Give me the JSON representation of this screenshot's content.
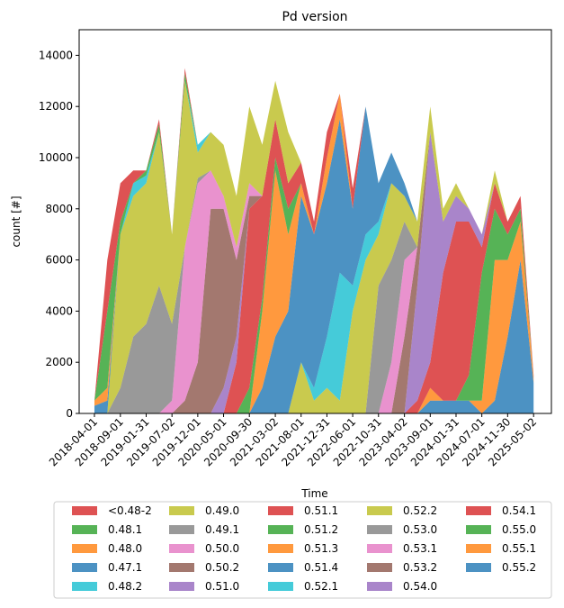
{
  "chart_data": {
    "type": "stacked_area",
    "title": "Pd version",
    "x_label": "Time",
    "y_label": "count [#]",
    "x": [
      "2018-04-01",
      "2018-06-16",
      "2018-09-01",
      "2018-11-16",
      "2019-01-31",
      "2019-04-17",
      "2019-07-02",
      "2019-09-16",
      "2019-12-01",
      "2020-02-15",
      "2020-05-01",
      "2020-07-16",
      "2020-09-30",
      "2020-12-15",
      "2021-03-02",
      "2021-05-17",
      "2021-08-01",
      "2021-10-16",
      "2021-12-31",
      "2022-03-17",
      "2022-06-01",
      "2022-08-16",
      "2022-10-31",
      "2023-01-15",
      "2023-04-02",
      "2023-06-17",
      "2023-09-01",
      "2023-11-16",
      "2024-01-31",
      "2024-04-16",
      "2024-07-01",
      "2024-09-15",
      "2024-11-30",
      "2025-02-14",
      "2025-05-02"
    ],
    "xlim": [
      "2018-01-01",
      "2025-08-15"
    ],
    "xticks": [
      "2018-04-01",
      "2018-09-01",
      "2019-01-31",
      "2019-07-02",
      "2019-12-01",
      "2020-05-01",
      "2020-09-30",
      "2021-03-02",
      "2021-08-01",
      "2021-12-31",
      "2022-06-01",
      "2022-10-31",
      "2023-04-02",
      "2023-09-01",
      "2024-01-31",
      "2024-07-01",
      "2024-11-30",
      "2025-05-02"
    ],
    "ylim": [
      0,
      15000
    ],
    "yticks": [
      0,
      2000,
      4000,
      6000,
      8000,
      10000,
      12000,
      14000
    ],
    "legend": "below",
    "series": [
      {
        "name": "<0.48-2",
        "color": "#d62728",
        "values": [
          0,
          2000,
          1500,
          500,
          0,
          200,
          0,
          200,
          0,
          0,
          0,
          0,
          0,
          0,
          0,
          0,
          0,
          0,
          0,
          0,
          0,
          0,
          0,
          0,
          0,
          0,
          0,
          0,
          0,
          0,
          0,
          0,
          0,
          0,
          0
        ]
      },
      {
        "name": "0.48.1",
        "color": "#2ca02c",
        "values": [
          0,
          3000,
          500,
          0,
          200,
          300,
          0,
          300,
          0,
          0,
          0,
          0,
          0,
          0,
          0,
          0,
          0,
          0,
          0,
          0,
          0,
          0,
          0,
          0,
          0,
          0,
          0,
          0,
          0,
          0,
          0,
          0,
          0,
          0,
          0
        ]
      },
      {
        "name": "0.48.0",
        "color": "#ff7f0e",
        "values": [
          200,
          500,
          0,
          0,
          0,
          0,
          0,
          0,
          0,
          0,
          0,
          0,
          0,
          0,
          0,
          0,
          0,
          0,
          0,
          0,
          0,
          0,
          0,
          0,
          0,
          0,
          0,
          0,
          0,
          0,
          0,
          0,
          0,
          0,
          0
        ]
      },
      {
        "name": "0.47.1",
        "color": "#1f77b4",
        "values": [
          300,
          500,
          0,
          0,
          0,
          0,
          0,
          0,
          0,
          0,
          0,
          0,
          0,
          0,
          0,
          0,
          0,
          0,
          0,
          0,
          0,
          0,
          0,
          0,
          0,
          0,
          0,
          0,
          0,
          0,
          0,
          0,
          0,
          0,
          0
        ]
      },
      {
        "name": "0.48.2",
        "color": "#17becf",
        "values": [
          0,
          0,
          0,
          500,
          300,
          0,
          0,
          0,
          300,
          0,
          0,
          0,
          0,
          0,
          0,
          0,
          0,
          0,
          0,
          0,
          0,
          0,
          0,
          0,
          0,
          0,
          0,
          0,
          0,
          0,
          0,
          0,
          0,
          0,
          0
        ]
      },
      {
        "name": "0.49.0",
        "color": "#bcbd22",
        "values": [
          0,
          0,
          6000,
          5500,
          5500,
          6000,
          3500,
          6500,
          1000,
          1500,
          2000,
          2000,
          3000,
          2000,
          1500,
          2000,
          0,
          0,
          0,
          0,
          0,
          0,
          0,
          0,
          0,
          0,
          0,
          0,
          0,
          0,
          0,
          0,
          0,
          0,
          0
        ]
      },
      {
        "name": "0.49.1",
        "color": "#7f7f7f",
        "values": [
          0,
          0,
          1000,
          3000,
          3500,
          5000,
          3000,
          0,
          200,
          0,
          0,
          0,
          0,
          0,
          0,
          0,
          0,
          0,
          0,
          0,
          0,
          0,
          0,
          0,
          0,
          0,
          0,
          0,
          0,
          0,
          0,
          0,
          0,
          0,
          0
        ]
      },
      {
        "name": "0.50.0",
        "color": "#e377c2",
        "values": [
          0,
          0,
          0,
          0,
          0,
          0,
          500,
          6000,
          7000,
          1500,
          500,
          500,
          500,
          0,
          0,
          0,
          0,
          0,
          0,
          0,
          0,
          0,
          0,
          0,
          0,
          0,
          0,
          0,
          0,
          0,
          0,
          0,
          0,
          0,
          0
        ]
      },
      {
        "name": "0.50.2",
        "color": "#8c564b",
        "values": [
          0,
          0,
          0,
          0,
          0,
          0,
          0,
          500,
          2000,
          8000,
          7000,
          3000,
          500,
          0,
          0,
          0,
          0,
          0,
          0,
          0,
          0,
          0,
          0,
          0,
          0,
          0,
          0,
          0,
          0,
          0,
          0,
          0,
          0,
          0,
          0
        ]
      },
      {
        "name": "0.51.0",
        "color": "#9467bd",
        "values": [
          0,
          0,
          0,
          0,
          0,
          0,
          0,
          0,
          0,
          0,
          1000,
          1000,
          0,
          0,
          0,
          0,
          0,
          0,
          0,
          0,
          0,
          0,
          0,
          0,
          0,
          0,
          0,
          0,
          0,
          0,
          0,
          0,
          0,
          0,
          0
        ]
      },
      {
        "name": "0.51.1",
        "color": "#d62728",
        "values": [
          0,
          0,
          0,
          0,
          0,
          0,
          0,
          0,
          0,
          0,
          0,
          2000,
          7000,
          4000,
          1500,
          1000,
          800,
          500,
          1000,
          0,
          800,
          0,
          0,
          0,
          0,
          0,
          0,
          0,
          0,
          0,
          0,
          0,
          0,
          0,
          0
        ]
      },
      {
        "name": "0.51.2",
        "color": "#2ca02c",
        "values": [
          0,
          0,
          0,
          0,
          0,
          0,
          0,
          0,
          0,
          0,
          0,
          0,
          1000,
          500,
          500,
          1000,
          0,
          0,
          0,
          0,
          0,
          0,
          0,
          0,
          0,
          0,
          0,
          0,
          0,
          0,
          0,
          0,
          0,
          0,
          0
        ]
      },
      {
        "name": "0.51.3",
        "color": "#ff7f0e",
        "values": [
          0,
          0,
          0,
          0,
          0,
          0,
          0,
          0,
          0,
          0,
          0,
          0,
          0,
          3000,
          6500,
          3000,
          500,
          0,
          1000,
          1000,
          0,
          0,
          0,
          0,
          0,
          0,
          0,
          0,
          0,
          0,
          0,
          0,
          0,
          0,
          0
        ]
      },
      {
        "name": "0.51.4",
        "color": "#1f77b4",
        "values": [
          0,
          0,
          0,
          0,
          0,
          0,
          0,
          0,
          0,
          0,
          0,
          0,
          0,
          1000,
          3000,
          4000,
          6500,
          6000,
          6000,
          6000,
          3000,
          5000,
          1500,
          1200,
          500,
          0,
          0,
          0,
          0,
          0,
          0,
          0,
          0,
          0,
          0
        ]
      },
      {
        "name": "0.52.1",
        "color": "#17becf",
        "values": [
          0,
          0,
          0,
          0,
          0,
          0,
          0,
          0,
          0,
          0,
          0,
          0,
          0,
          0,
          0,
          0,
          0,
          500,
          2000,
          5000,
          1000,
          1000,
          500,
          0,
          0,
          0,
          0,
          0,
          0,
          0,
          0,
          0,
          0,
          0,
          0
        ]
      },
      {
        "name": "0.52.2",
        "color": "#bcbd22",
        "values": [
          0,
          0,
          0,
          0,
          0,
          0,
          0,
          0,
          0,
          0,
          0,
          0,
          0,
          0,
          0,
          0,
          2000,
          500,
          1000,
          500,
          4000,
          6000,
          2000,
          3000,
          1000,
          1000,
          1000,
          500,
          500,
          0,
          0,
          500,
          0,
          0,
          0
        ]
      },
      {
        "name": "0.53.0",
        "color": "#7f7f7f",
        "values": [
          0,
          0,
          0,
          0,
          0,
          0,
          0,
          0,
          0,
          0,
          0,
          0,
          0,
          0,
          0,
          0,
          0,
          0,
          0,
          0,
          0,
          0,
          5000,
          4000,
          1500,
          0,
          0,
          0,
          0,
          0,
          0,
          0,
          0,
          0,
          0
        ]
      },
      {
        "name": "0.53.1",
        "color": "#e377c2",
        "values": [
          0,
          0,
          0,
          0,
          0,
          0,
          0,
          0,
          0,
          0,
          0,
          0,
          0,
          0,
          0,
          0,
          0,
          0,
          0,
          0,
          0,
          0,
          0,
          2000,
          3000,
          0,
          0,
          0,
          0,
          0,
          0,
          0,
          0,
          0,
          0
        ]
      },
      {
        "name": "0.53.2",
        "color": "#8c564b",
        "values": [
          0,
          0,
          0,
          0,
          0,
          0,
          0,
          0,
          0,
          0,
          0,
          0,
          0,
          0,
          0,
          0,
          0,
          0,
          0,
          0,
          0,
          0,
          0,
          0,
          3000,
          1500,
          0,
          0,
          0,
          0,
          0,
          0,
          0,
          0,
          0
        ]
      },
      {
        "name": "0.54.0",
        "color": "#9467bd",
        "values": [
          0,
          0,
          0,
          0,
          0,
          0,
          0,
          0,
          0,
          0,
          0,
          0,
          0,
          0,
          0,
          0,
          0,
          0,
          0,
          0,
          0,
          0,
          0,
          0,
          0,
          4500,
          9000,
          2000,
          1000,
          500,
          500,
          0,
          0,
          0,
          0
        ]
      },
      {
        "name": "0.54.1",
        "color": "#d62728",
        "values": [
          0,
          0,
          0,
          0,
          0,
          0,
          0,
          0,
          0,
          0,
          0,
          0,
          0,
          0,
          0,
          0,
          0,
          0,
          0,
          0,
          0,
          0,
          0,
          0,
          0,
          500,
          1000,
          5000,
          7000,
          6000,
          1000,
          1000,
          500,
          500,
          100
        ]
      },
      {
        "name": "0.55.0",
        "color": "#2ca02c",
        "values": [
          0,
          0,
          0,
          0,
          0,
          0,
          0,
          0,
          0,
          0,
          0,
          0,
          0,
          0,
          0,
          0,
          0,
          0,
          0,
          0,
          0,
          0,
          0,
          0,
          0,
          0,
          0,
          0,
          0,
          1000,
          5000,
          2000,
          1000,
          500,
          0
        ]
      },
      {
        "name": "0.55.1",
        "color": "#ff7f0e",
        "values": [
          0,
          0,
          0,
          0,
          0,
          0,
          0,
          0,
          0,
          0,
          0,
          0,
          0,
          0,
          0,
          0,
          0,
          0,
          0,
          0,
          0,
          0,
          0,
          0,
          0,
          0,
          500,
          0,
          0,
          0,
          500,
          5500,
          3000,
          1500,
          200
        ]
      },
      {
        "name": "0.55.2",
        "color": "#1f77b4",
        "values": [
          0,
          0,
          0,
          0,
          0,
          0,
          0,
          0,
          0,
          0,
          0,
          0,
          0,
          0,
          0,
          0,
          0,
          0,
          0,
          0,
          0,
          0,
          0,
          0,
          0,
          0,
          500,
          500,
          500,
          500,
          0,
          500,
          3000,
          6000,
          1200
        ]
      }
    ]
  }
}
